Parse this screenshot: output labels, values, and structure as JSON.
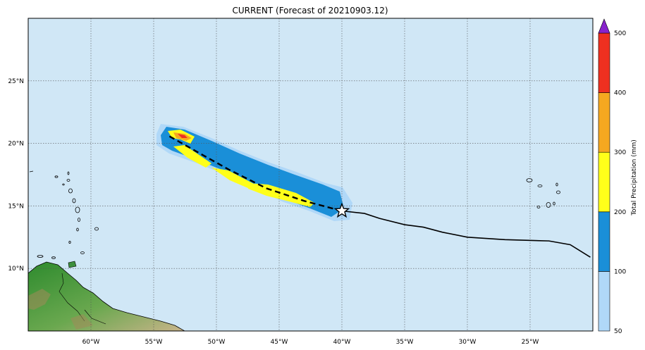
{
  "title": "CURRENT (Forecast of 20210903.12)",
  "map": {
    "lon_range": [
      -65,
      -20
    ],
    "lat_range": [
      5,
      30
    ],
    "ocean_color": "#d0e7f6",
    "grid": true,
    "lon_ticks": [
      {
        "value": -60,
        "label": "60°W"
      },
      {
        "value": -55,
        "label": "55°W"
      },
      {
        "value": -50,
        "label": "50°W"
      },
      {
        "value": -45,
        "label": "45°W"
      },
      {
        "value": -40,
        "label": "40°W"
      },
      {
        "value": -35,
        "label": "35°W"
      },
      {
        "value": -30,
        "label": "30°W"
      },
      {
        "value": -25,
        "label": "25°W"
      }
    ],
    "lat_ticks": [
      {
        "value": 10,
        "label": "10°N"
      },
      {
        "value": 15,
        "label": "15°N"
      },
      {
        "value": 20,
        "label": "20°N"
      },
      {
        "value": 25,
        "label": "25°N"
      }
    ],
    "past_track": [
      [
        -20.2,
        10.9
      ],
      [
        -21.8,
        11.9
      ],
      [
        -23.5,
        12.2
      ],
      [
        -27,
        12.3
      ],
      [
        -30,
        12.5
      ],
      [
        -32,
        12.9
      ],
      [
        -33.5,
        13.3
      ],
      [
        -35,
        13.5
      ],
      [
        -37,
        14.0
      ],
      [
        -38.2,
        14.4
      ],
      [
        -40,
        14.6
      ]
    ],
    "forecast_track": [
      [
        -40,
        14.6
      ],
      [
        -43,
        15.4
      ],
      [
        -46,
        16.4
      ],
      [
        -49,
        17.9
      ],
      [
        -51.5,
        19.3
      ],
      [
        -53.8,
        20.6
      ]
    ],
    "current_position": [
      -40,
      14.6
    ]
  },
  "colorbar": {
    "label": "Total Precipitation (mm)",
    "levels": [
      {
        "value": 50,
        "label": "50",
        "color": "#b0d8f8"
      },
      {
        "value": 100,
        "label": "100",
        "color": "#1a8fd8"
      },
      {
        "value": 200,
        "label": "200",
        "color": "#ffff1a"
      },
      {
        "value": 300,
        "label": "300",
        "color": "#f5a820"
      },
      {
        "value": 400,
        "label": "400",
        "color": "#ee3020"
      },
      {
        "value": 500,
        "label": "500",
        "color": "#8822cc"
      }
    ]
  }
}
